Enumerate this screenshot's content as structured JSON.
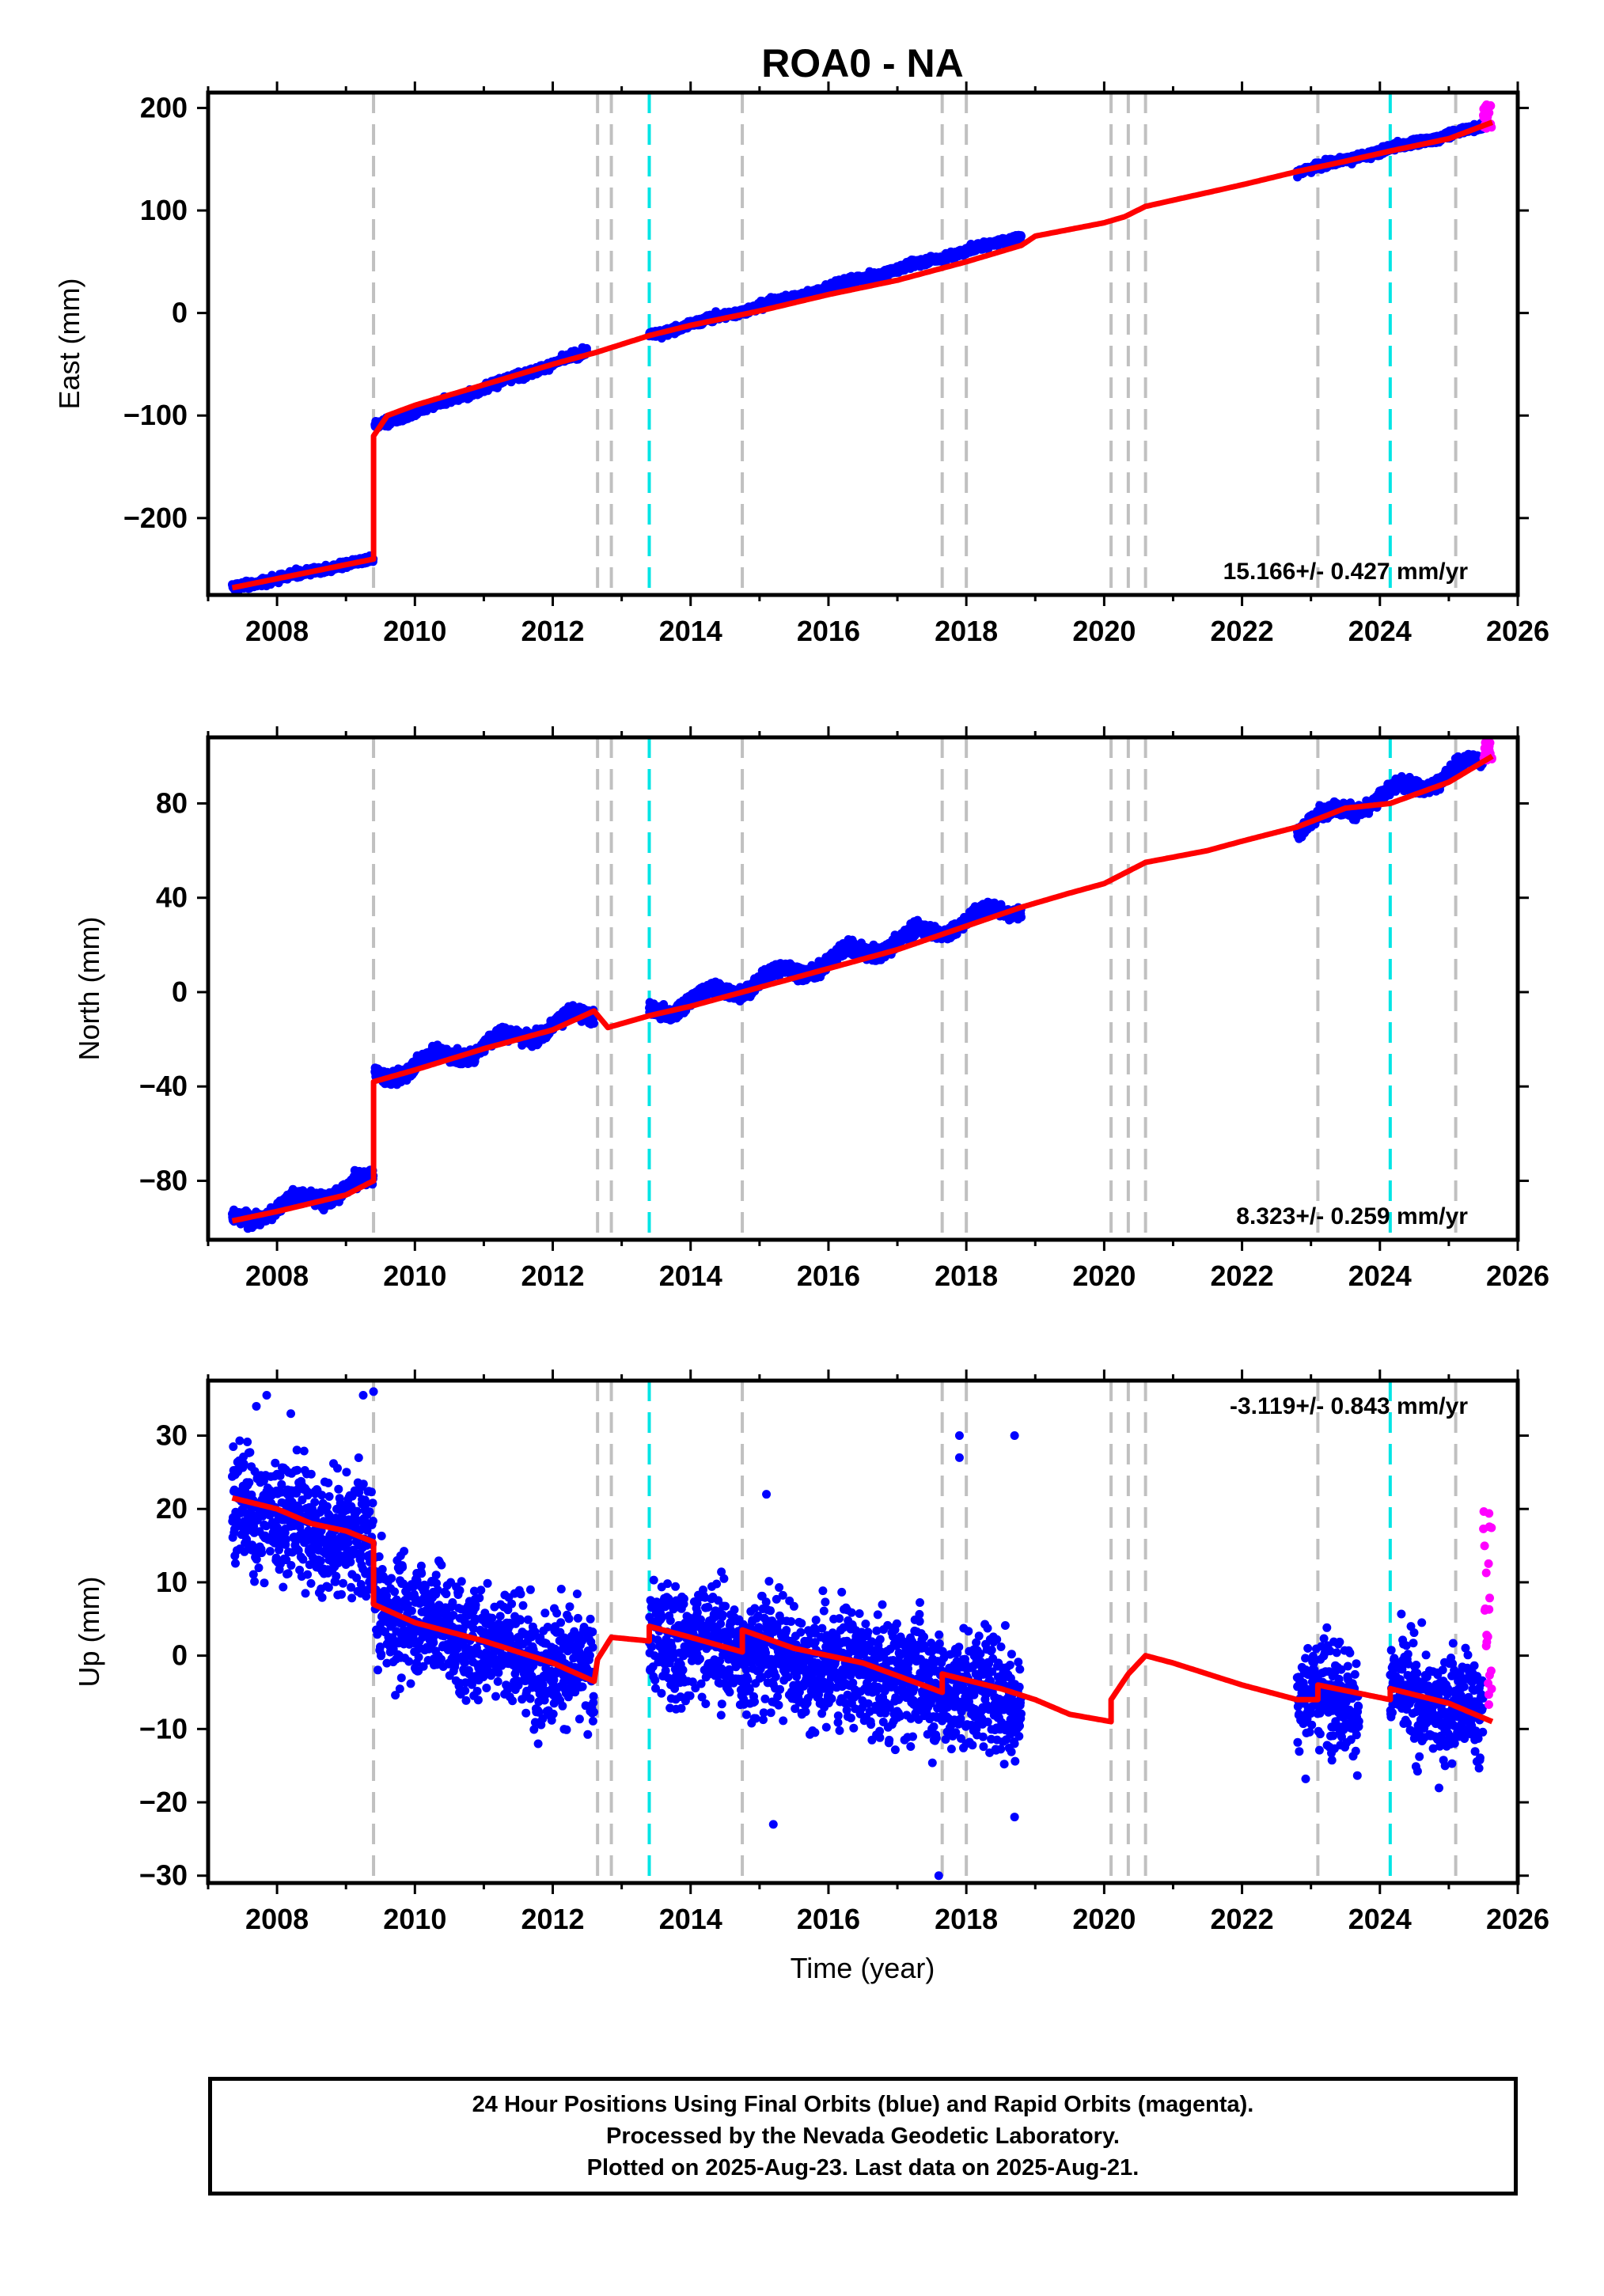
{
  "title": "ROA0 - NA",
  "xlabel": "Time (year)",
  "footer": {
    "line1": "24 Hour Positions Using Final Orbits (blue) and Rapid Orbits (magenta).",
    "line2": "Processed by the Nevada Geodetic Laboratory.",
    "line3": "Plotted on 2025-Aug-23. Last data on 2025-Aug-21."
  },
  "colors": {
    "final": "#0000ff",
    "rapid": "#ff00ff",
    "model": "#ff0000",
    "event_gray": "#c0c0c0",
    "event_cyan": "#00e5e5"
  },
  "chart_data": [
    {
      "type": "scatter",
      "ylabel": "East (mm)",
      "xlim": [
        2007.0,
        2026.0
      ],
      "ylim": [
        -275,
        215
      ],
      "xticks": [
        2008,
        2010,
        2012,
        2014,
        2016,
        2018,
        2020,
        2022,
        2024,
        2026
      ],
      "yticks": [
        -200,
        -100,
        0,
        100,
        200
      ],
      "rate_label": "15.166+/- 0.427 mm/yr",
      "rate_position": "bottom-right",
      "event_lines_gray": [
        2009.4,
        2012.65,
        2012.85,
        2014.75,
        2017.65,
        2018.0,
        2020.1,
        2020.35,
        2020.6,
        2023.1,
        2025.1
      ],
      "event_lines_cyan": [
        2013.4,
        2024.15
      ],
      "segments": [
        {
          "x0": 2007.35,
          "x1": 2009.4,
          "y0": -268,
          "y1": -240,
          "scatter": 2.5,
          "amp": 1
        },
        {
          "x0": 2009.42,
          "x1": 2012.5,
          "y0": -110,
          "y1": -38,
          "scatter": 2.5,
          "amp": 1
        },
        {
          "x0": 2013.4,
          "x1": 2018.8,
          "y0": -22,
          "y1": 75,
          "scatter": 2.5,
          "amp": 1
        },
        {
          "x0": 2022.8,
          "x1": 2025.5,
          "y0": 138,
          "y1": 182,
          "scatter": 2.5,
          "amp": 1
        }
      ],
      "rapid": {
        "x0": 2025.5,
        "x1": 2025.63,
        "ymin": 180,
        "ymax": 204
      },
      "model": [
        [
          2007.35,
          -268
        ],
        [
          2009.4,
          -240
        ],
        [
          2009.4,
          -120
        ],
        [
          2009.6,
          -100
        ],
        [
          2010.0,
          -90
        ],
        [
          2011.0,
          -70
        ],
        [
          2012.0,
          -50
        ],
        [
          2012.65,
          -38
        ],
        [
          2013.4,
          -22
        ],
        [
          2014.0,
          -12
        ],
        [
          2015.0,
          2
        ],
        [
          2016.0,
          18
        ],
        [
          2017.0,
          32
        ],
        [
          2018.0,
          50
        ],
        [
          2018.8,
          66
        ],
        [
          2019.0,
          75
        ],
        [
          2020.0,
          88
        ],
        [
          2020.3,
          94
        ],
        [
          2020.6,
          104
        ],
        [
          2021.0,
          110
        ],
        [
          2022.0,
          125
        ],
        [
          2022.8,
          138
        ],
        [
          2023.5,
          148
        ],
        [
          2024.15,
          158
        ],
        [
          2025.0,
          170
        ],
        [
          2025.63,
          186
        ]
      ]
    },
    {
      "type": "scatter",
      "ylabel": "North (mm)",
      "xlim": [
        2007.0,
        2026.0
      ],
      "ylim": [
        -105,
        108
      ],
      "xticks": [
        2008,
        2010,
        2012,
        2014,
        2016,
        2018,
        2020,
        2022,
        2024,
        2026
      ],
      "yticks": [
        -80,
        -40,
        0,
        40,
        80
      ],
      "rate_label": "8.323+/- 0.259 mm/yr",
      "rate_position": "bottom-right",
      "event_lines_gray": [
        2009.4,
        2012.65,
        2012.85,
        2014.75,
        2017.65,
        2018.0,
        2020.1,
        2020.35,
        2020.6,
        2023.1,
        2025.1
      ],
      "event_lines_cyan": [
        2013.4,
        2024.15
      ],
      "segments": [
        {
          "x0": 2007.35,
          "x1": 2009.4,
          "y0": -97,
          "y1": -80,
          "scatter": 2.0,
          "amp": 3
        },
        {
          "x0": 2009.42,
          "x1": 2012.6,
          "y0": -36,
          "y1": -9,
          "scatter": 2.0,
          "amp": 3
        },
        {
          "x0": 2013.4,
          "x1": 2018.8,
          "y0": -9,
          "y1": 37,
          "scatter": 2.0,
          "amp": 3
        },
        {
          "x0": 2022.8,
          "x1": 2025.5,
          "y0": 70,
          "y1": 98,
          "scatter": 2.0,
          "amp": 3
        }
      ],
      "rapid": {
        "x0": 2025.5,
        "x1": 2025.63,
        "ymin": 98,
        "ymax": 106
      },
      "model": [
        [
          2007.35,
          -97
        ],
        [
          2008.0,
          -93
        ],
        [
          2009.0,
          -86
        ],
        [
          2009.4,
          -80
        ],
        [
          2009.4,
          -38
        ],
        [
          2010.0,
          -33
        ],
        [
          2011.0,
          -24
        ],
        [
          2012.0,
          -16
        ],
        [
          2012.6,
          -8
        ],
        [
          2012.8,
          -15
        ],
        [
          2013.4,
          -10
        ],
        [
          2014.0,
          -6
        ],
        [
          2015.0,
          2
        ],
        [
          2016.0,
          10
        ],
        [
          2017.0,
          18
        ],
        [
          2018.0,
          28
        ],
        [
          2018.8,
          36
        ],
        [
          2019.5,
          42
        ],
        [
          2020.0,
          46
        ],
        [
          2020.6,
          55
        ],
        [
          2021.5,
          60
        ],
        [
          2022.0,
          64
        ],
        [
          2022.8,
          70
        ],
        [
          2023.5,
          78
        ],
        [
          2024.15,
          80
        ],
        [
          2025.0,
          89
        ],
        [
          2025.63,
          100
        ]
      ]
    },
    {
      "type": "scatter",
      "ylabel": "Up (mm)",
      "xlim": [
        2007.0,
        2026.0
      ],
      "ylim": [
        -31,
        37.5
      ],
      "xticks": [
        2008,
        2010,
        2012,
        2014,
        2016,
        2018,
        2020,
        2022,
        2024,
        2026
      ],
      "yticks": [
        -30,
        -20,
        -10,
        0,
        10,
        20,
        30
      ],
      "rate_label": "-3.119+/- 0.843 mm/yr",
      "rate_position": "top-right",
      "event_lines_gray": [
        2009.4,
        2012.65,
        2012.85,
        2014.75,
        2017.65,
        2018.0,
        2020.1,
        2020.35,
        2020.6,
        2023.1,
        2025.1
      ],
      "event_lines_cyan": [
        2013.4,
        2024.15
      ],
      "segments": [
        {
          "x0": 2007.35,
          "x1": 2009.4,
          "y0": 21,
          "y1": 15,
          "scatter": 5.5,
          "amp": 1
        },
        {
          "x0": 2009.42,
          "x1": 2012.6,
          "y0": 7,
          "y1": -3,
          "scatter": 5.5,
          "amp": 1
        },
        {
          "x0": 2013.4,
          "x1": 2018.8,
          "y0": 3,
          "y1": -6,
          "scatter": 5.5,
          "amp": 1
        },
        {
          "x0": 2022.8,
          "x1": 2023.7,
          "y0": -5,
          "y1": -6,
          "scatter": 5.0,
          "amp": 1
        },
        {
          "x0": 2024.15,
          "x1": 2025.5,
          "y0": -5,
          "y1": -8,
          "scatter": 5.0,
          "amp": 1
        }
      ],
      "outliers": [
        [
          2007.7,
          34
        ],
        [
          2007.85,
          35.5
        ],
        [
          2008.2,
          33
        ],
        [
          2009.4,
          36
        ],
        [
          2009.25,
          35.5
        ],
        [
          2017.9,
          30
        ],
        [
          2018.7,
          30
        ],
        [
          2017.9,
          27
        ],
        [
          2015.1,
          22
        ],
        [
          2017.6,
          -30
        ],
        [
          2015.2,
          -23
        ],
        [
          2018.7,
          -22
        ]
      ],
      "rapid": {
        "x0": 2025.5,
        "x1": 2025.63,
        "ymin": -8,
        "ymax": 20
      },
      "model": [
        [
          2007.35,
          21.5
        ],
        [
          2008.0,
          20
        ],
        [
          2008.5,
          18
        ],
        [
          2009.0,
          17
        ],
        [
          2009.4,
          15.5
        ],
        [
          2009.4,
          7
        ],
        [
          2010.0,
          4.5
        ],
        [
          2011.0,
          2
        ],
        [
          2012.0,
          -1
        ],
        [
          2012.6,
          -3.5
        ],
        [
          2012.65,
          -0.5
        ],
        [
          2012.85,
          2.5
        ],
        [
          2013.4,
          2
        ],
        [
          2013.4,
          4
        ],
        [
          2014.0,
          2.5
        ],
        [
          2014.75,
          0.5
        ],
        [
          2014.75,
          3.5
        ],
        [
          2015.5,
          1
        ],
        [
          2016.5,
          -1
        ],
        [
          2017.65,
          -5
        ],
        [
          2017.65,
          -2.5
        ],
        [
          2018.5,
          -4.5
        ],
        [
          2019.0,
          -6
        ],
        [
          2019.5,
          -8
        ],
        [
          2020.1,
          -9
        ],
        [
          2020.1,
          -6
        ],
        [
          2020.35,
          -2.5
        ],
        [
          2020.6,
          0
        ],
        [
          2021.0,
          -1
        ],
        [
          2022.0,
          -4
        ],
        [
          2022.8,
          -6
        ],
        [
          2023.1,
          -6
        ],
        [
          2023.1,
          -4
        ],
        [
          2024.15,
          -6
        ],
        [
          2024.15,
          -4.5
        ],
        [
          2025.0,
          -6.5
        ],
        [
          2025.63,
          -9
        ]
      ]
    }
  ]
}
